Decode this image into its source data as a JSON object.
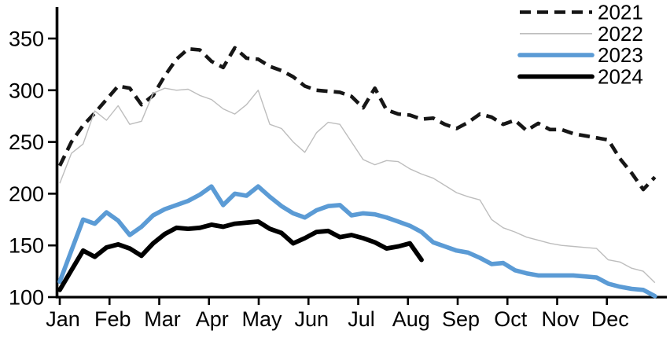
{
  "chart_data": {
    "type": "line",
    "title": "",
    "xlabel": "",
    "ylabel": "",
    "x_unit": "week-of-year",
    "x_tick_labels": [
      "Jan",
      "Feb",
      "Mar",
      "Apr",
      "May",
      "Jun",
      "Jul",
      "Aug",
      "Sep",
      "Oct",
      "Nov",
      "Dec"
    ],
    "y_tick_labels": [
      "100",
      "150",
      "200",
      "250",
      "300",
      "350"
    ],
    "y_tick_values": [
      100,
      150,
      200,
      250,
      300,
      350
    ],
    "ylim": [
      100,
      350
    ],
    "grid": false,
    "legend_position": "top-right",
    "series": [
      {
        "name": "2021",
        "style": "dashed",
        "color": "#161616",
        "line_width": 4.6,
        "values": [
          227,
          250,
          266,
          278,
          291,
          304,
          302,
          286,
          295,
          314,
          330,
          340,
          339,
          328,
          322,
          341,
          331,
          330,
          323,
          319,
          313,
          304,
          300,
          299,
          298,
          294,
          283,
          302,
          281,
          277,
          276,
          272,
          273,
          267,
          263,
          269,
          277,
          274,
          267,
          271,
          261,
          268,
          262,
          262,
          258,
          256,
          254,
          252,
          234,
          220,
          204,
          216
        ]
      },
      {
        "name": "2022",
        "style": "solid",
        "color": "#bdbdbd",
        "line_width": 1.4,
        "values": [
          210,
          239,
          248,
          280,
          271,
          285,
          267,
          270,
          297,
          302,
          300,
          301,
          295,
          291,
          282,
          277,
          286,
          300,
          267,
          263,
          250,
          240,
          259,
          269,
          267,
          250,
          233,
          228,
          232,
          231,
          224,
          219,
          215,
          208,
          201,
          197,
          194,
          175,
          167,
          163,
          158,
          155,
          152,
          150,
          149,
          148,
          147,
          136,
          134,
          128,
          125,
          114
        ]
      },
      {
        "name": "2023",
        "style": "solid",
        "color": "#5b9bd5",
        "line_width": 5.6,
        "values": [
          115,
          145,
          175,
          171,
          182,
          174,
          160,
          168,
          179,
          185,
          189,
          193,
          199,
          207,
          189,
          200,
          198,
          207,
          197,
          188,
          181,
          177,
          184,
          188,
          189,
          179,
          181,
          180,
          177,
          173,
          169,
          163,
          153,
          149,
          145,
          143,
          138,
          132,
          133,
          126,
          123,
          121,
          121,
          121,
          121,
          120,
          119,
          113,
          110,
          108,
          107,
          101
        ]
      },
      {
        "name": "2024",
        "style": "solid",
        "color": "#000000",
        "line_width": 5.8,
        "values": [
          107,
          126,
          145,
          139,
          148,
          151,
          147,
          140,
          152,
          161,
          167,
          166,
          167,
          170,
          168,
          171,
          172,
          173,
          166,
          162,
          152,
          157,
          163,
          164,
          158,
          160,
          157,
          153,
          147,
          149,
          152,
          136
        ]
      }
    ]
  },
  "legend": {
    "items": [
      {
        "label": "2021"
      },
      {
        "label": "2022"
      },
      {
        "label": "2023"
      },
      {
        "label": "2024"
      }
    ]
  }
}
